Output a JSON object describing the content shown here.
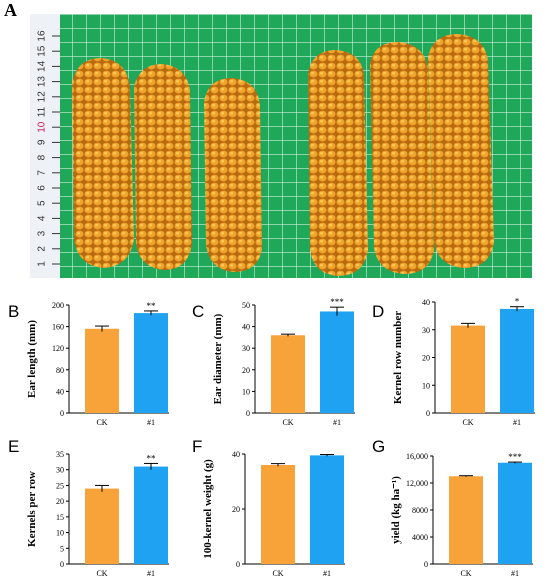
{
  "figure": {
    "panel_a_label": "A",
    "photo_description_icon": "corn-ears-photo-icon",
    "ruler_ticks": [
      "1",
      "2",
      "3",
      "4",
      "5",
      "6",
      "7",
      "8",
      "9",
      "10",
      "11",
      "12",
      "13",
      "14",
      "15",
      "16"
    ]
  },
  "colors": {
    "ck": "#F7A33A",
    "treated": "#1EA2F1",
    "grid_bg": "#1FA75A",
    "kernel": "#E39A22"
  },
  "chart_data": [
    {
      "panel": "B",
      "type": "bar",
      "categories": [
        "CK",
        "#1"
      ],
      "values": [
        156,
        185
      ],
      "errors": [
        5,
        4
      ],
      "significance": "**",
      "ylabel": "Ear length (mm)",
      "ylim": [
        0,
        200
      ],
      "yticks": [
        "0",
        "40",
        "80",
        "120",
        "160",
        "200"
      ]
    },
    {
      "panel": "C",
      "type": "bar",
      "categories": [
        "CK",
        "#1"
      ],
      "values": [
        36,
        47
      ],
      "errors": [
        0.5,
        2
      ],
      "significance": "***",
      "ylabel": "Ear diameter (mm)",
      "ylim": [
        0,
        50
      ],
      "yticks": [
        "0",
        "10",
        "20",
        "30",
        "40",
        "50"
      ]
    },
    {
      "panel": "D",
      "type": "bar",
      "categories": [
        "CK",
        "#1"
      ],
      "values": [
        31.5,
        37.5
      ],
      "errors": [
        0.8,
        0.8
      ],
      "significance": "*",
      "ylabel": "Kernel row number",
      "ylim": [
        0,
        40
      ],
      "yticks": [
        "0",
        "10",
        "20",
        "30",
        "40"
      ]
    },
    {
      "panel": "E",
      "type": "bar",
      "categories": [
        "CK",
        "#1"
      ],
      "values": [
        24,
        31
      ],
      "errors": [
        1,
        1
      ],
      "significance": "**",
      "ylabel": "Kernels per row",
      "ylim": [
        0,
        35
      ],
      "yticks": [
        "0",
        "5",
        "10",
        "15",
        "20",
        "25",
        "30",
        "35"
      ]
    },
    {
      "panel": "F",
      "type": "bar",
      "categories": [
        "CK",
        "#1"
      ],
      "values": [
        36,
        39.5
      ],
      "errors": [
        0.5,
        0.3
      ],
      "significance": "",
      "ylabel": "100-kernel weight (g)",
      "ylim": [
        0,
        40
      ],
      "yticks": [
        "0",
        "20",
        "40"
      ]
    },
    {
      "panel": "G",
      "type": "bar",
      "categories": [
        "CK",
        "#1"
      ],
      "values": [
        13000,
        15000
      ],
      "errors": [
        80,
        100
      ],
      "significance": "***",
      "ylabel": "yield (kg ha⁻¹)",
      "ylim": [
        0,
        16000
      ],
      "yticks": [
        "0",
        "4000",
        "8000",
        "12,000",
        "16,000"
      ]
    }
  ]
}
